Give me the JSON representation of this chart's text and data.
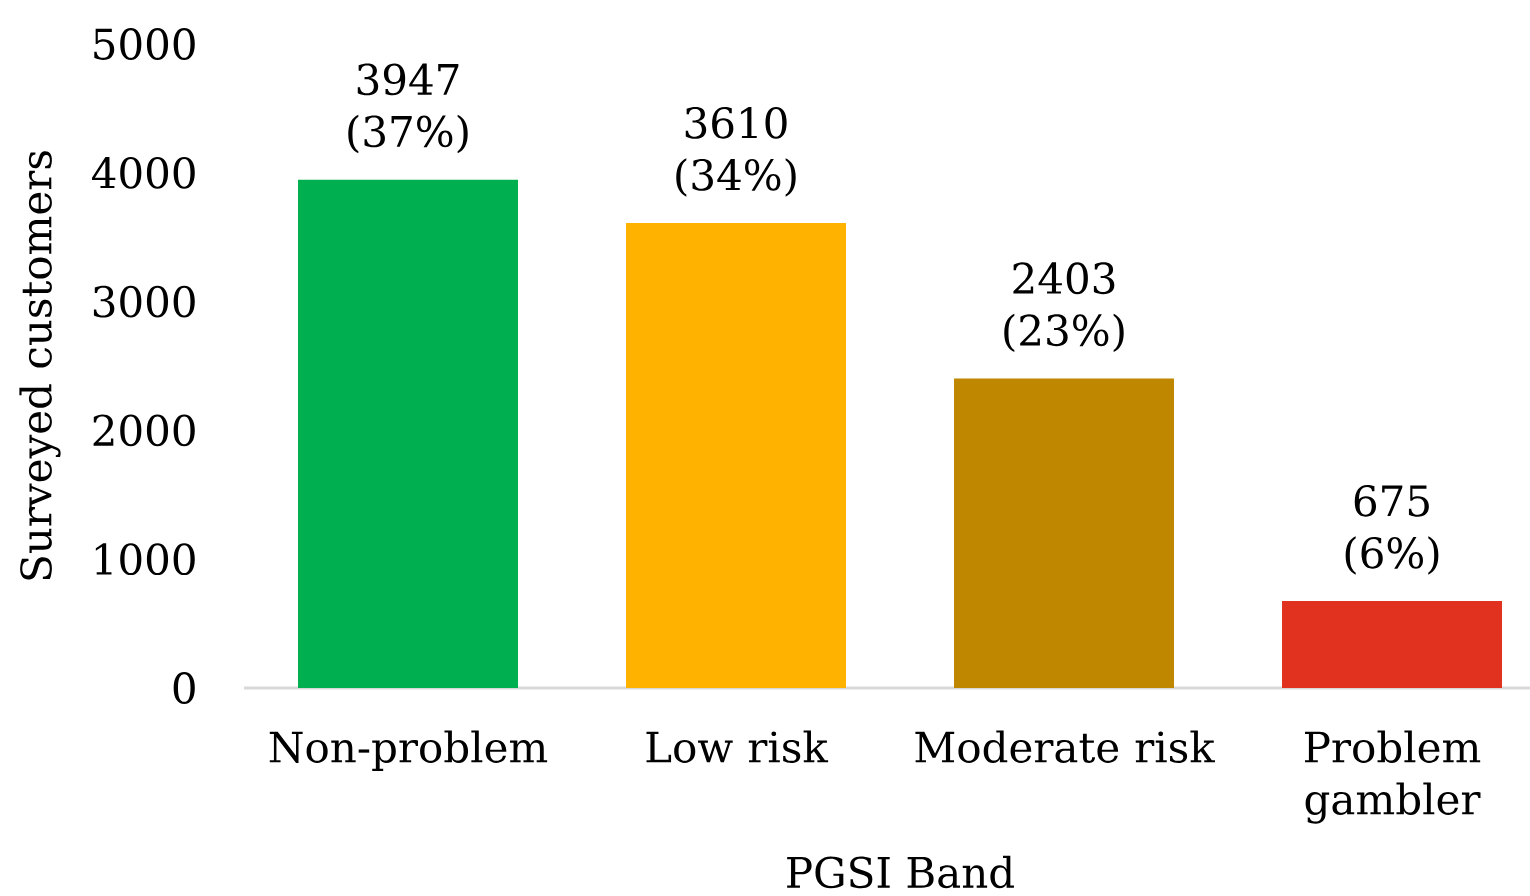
{
  "chart_data": {
    "type": "bar",
    "xlabel": "PGSI Band",
    "ylabel": "Surveyed customers",
    "categories": [
      "Non-problem",
      "Low risk",
      "Moderate risk",
      "Problem gambler"
    ],
    "values": [
      3947,
      3610,
      2403,
      675
    ],
    "colors": [
      "#00af50",
      "#ffb300",
      "#bf8700",
      "#e0321f"
    ],
    "value_labels": [
      "3947 (37%)",
      "3610 (34%)",
      "2403 (23%)",
      "675 (6%)"
    ],
    "ylim": [
      0,
      5000
    ],
    "yticks": [
      0,
      1000,
      2000,
      3000,
      4000,
      5000
    ]
  }
}
